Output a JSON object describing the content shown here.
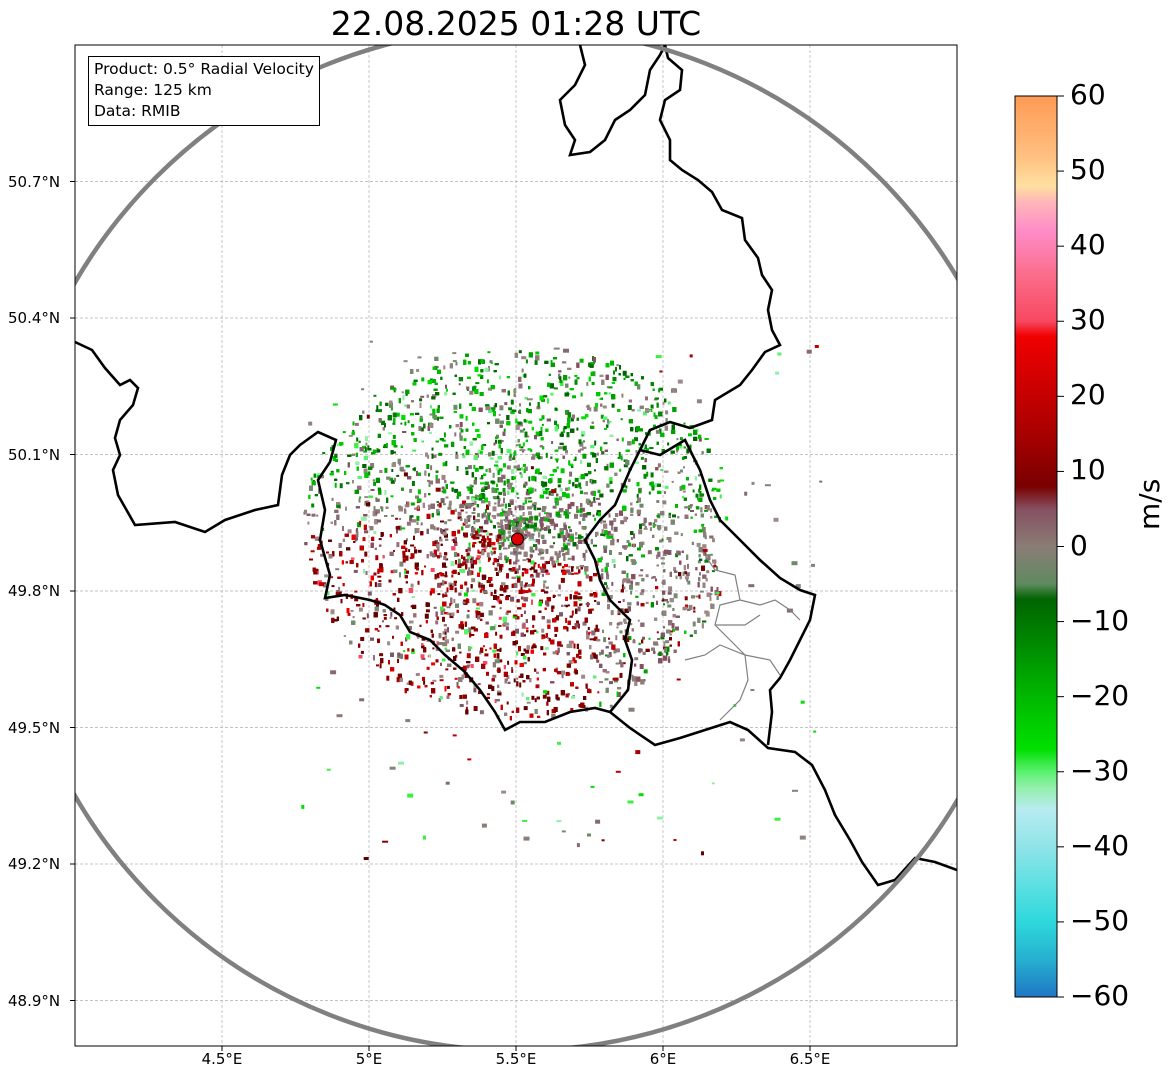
{
  "title": "22.08.2025 01:28 UTC",
  "info_box": {
    "product": "Product: 0.5° Radial Velocity",
    "range": "Range: 125 km",
    "data": "Data: RMIB"
  },
  "map": {
    "lon_range": [
      4.0,
      7.0
    ],
    "lat_range": [
      48.8,
      51.0
    ],
    "radar_site": {
      "lon": 5.505,
      "lat": 49.914
    },
    "range_ring_km": 125,
    "lat_ticks": [
      {
        "value": 50.7,
        "label": "50.7°N"
      },
      {
        "value": 50.4,
        "label": "50.4°N"
      },
      {
        "value": 50.1,
        "label": "50.1°N"
      },
      {
        "value": 49.8,
        "label": "49.8°N"
      },
      {
        "value": 49.5,
        "label": "49.5°N"
      },
      {
        "value": 49.2,
        "label": "49.2°N"
      },
      {
        "value": 48.9,
        "label": "48.9°N"
      }
    ],
    "lon_ticks": [
      {
        "value": 4.5,
        "label": "4.5°E"
      },
      {
        "value": 5.0,
        "label": "5°E"
      },
      {
        "value": 5.5,
        "label": "5.5°E"
      },
      {
        "value": 6.0,
        "label": "6°E"
      },
      {
        "value": 6.5,
        "label": "6.5°E"
      }
    ],
    "gridlines": true,
    "colors": {
      "range_ring": "#808080",
      "border": "#000000",
      "admin_border": "#808080",
      "grid": "#b0b0b0",
      "radar_marker": "#e00000"
    }
  },
  "colorbar": {
    "label": "m/s",
    "min": -60,
    "max": 60,
    "tick_labels": [
      "60",
      "50",
      "40",
      "30",
      "20",
      "10",
      "0",
      "−10",
      "−20",
      "−30",
      "−40",
      "−50",
      "−60"
    ],
    "stops": [
      {
        "v": -60,
        "c": "#1f77c4"
      },
      {
        "v": -55,
        "c": "#26b0d0"
      },
      {
        "v": -50,
        "c": "#2ed8dc"
      },
      {
        "v": -45,
        "c": "#5ee0e2"
      },
      {
        "v": -40,
        "c": "#90e4e8"
      },
      {
        "v": -35,
        "c": "#b8ecf0"
      },
      {
        "v": -32,
        "c": "#90f0a8"
      },
      {
        "v": -30,
        "c": "#5af070"
      },
      {
        "v": -27,
        "c": "#00e000"
      },
      {
        "v": -20,
        "c": "#00b800"
      },
      {
        "v": -13,
        "c": "#008a00"
      },
      {
        "v": -7,
        "c": "#006400"
      },
      {
        "v": -5,
        "c": "#5f8a5f"
      },
      {
        "v": 0,
        "c": "#8a7c76"
      },
      {
        "v": 5,
        "c": "#865060"
      },
      {
        "v": 8,
        "c": "#7a0000"
      },
      {
        "v": 15,
        "c": "#a80000"
      },
      {
        "v": 22,
        "c": "#d00000"
      },
      {
        "v": 28,
        "c": "#f00000"
      },
      {
        "v": 30,
        "c": "#f84860"
      },
      {
        "v": 36,
        "c": "#fa6c8a"
      },
      {
        "v": 42,
        "c": "#ff8cc8"
      },
      {
        "v": 46,
        "c": "#ffb8b8"
      },
      {
        "v": 48,
        "c": "#ffe0a0"
      },
      {
        "v": 52,
        "c": "#ffc080"
      },
      {
        "v": 60,
        "c": "#ff9a55"
      }
    ]
  }
}
